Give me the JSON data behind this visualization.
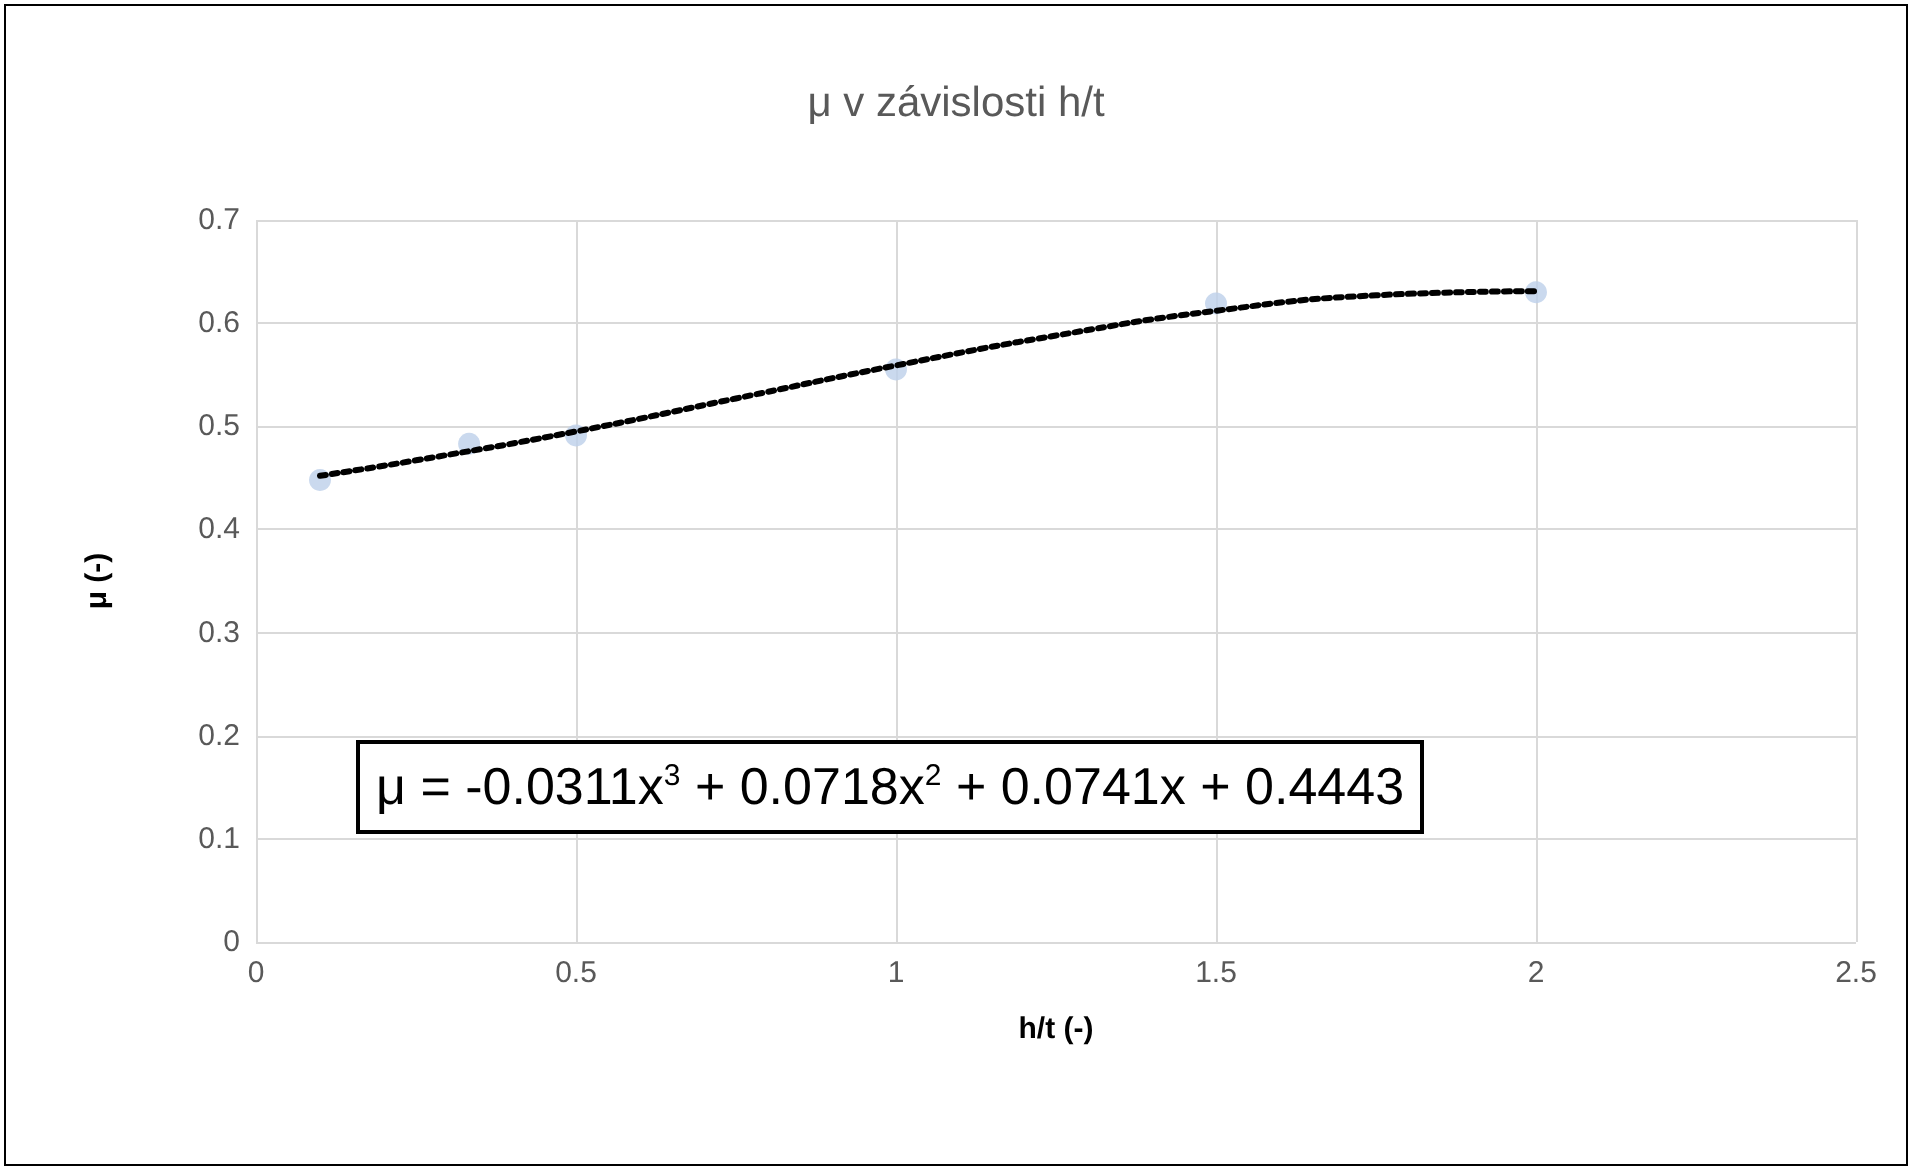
{
  "chart_data": {
    "type": "scatter",
    "title": "μ v závislosti h/t",
    "xlabel": "h/t (-)",
    "ylabel": "μ (-)",
    "series": [
      {
        "color": "#bdd0ea",
        "x": [
          0.1,
          0.333,
          0.5,
          1,
          1.5,
          2
        ],
        "values": [
          0.448,
          0.483,
          0.491,
          0.555,
          0.619,
          0.63
        ]
      },
      {
        "type": "line",
        "color": "#000000",
        "line_style": "dotted",
        "marker": "none",
        "x": [
          0.1,
          0.25,
          0.5,
          0.75,
          1,
          1.25,
          1.5,
          1.75,
          2
        ],
        "values": [
          0.452,
          0.467,
          0.495,
          0.527,
          0.559,
          0.588,
          0.612,
          0.627,
          0.631
        ]
      }
    ],
    "annotations": [
      "μ = -0.0311x$^{3}$ + 0.0718x$^{2}$ + 0.0741x + 0.4443"
    ],
    "xlim": [
      0,
      2.5
    ],
    "xticks": [
      0,
      0.5,
      1,
      1.5,
      2,
      2.5
    ],
    "ylim": [
      0,
      0.7
    ],
    "yticks": [
      0,
      0.1,
      0.2,
      0.3,
      0.4,
      0.5,
      0.6,
      0.7
    ],
    "grid": true,
    "marker": "circle"
  }
}
